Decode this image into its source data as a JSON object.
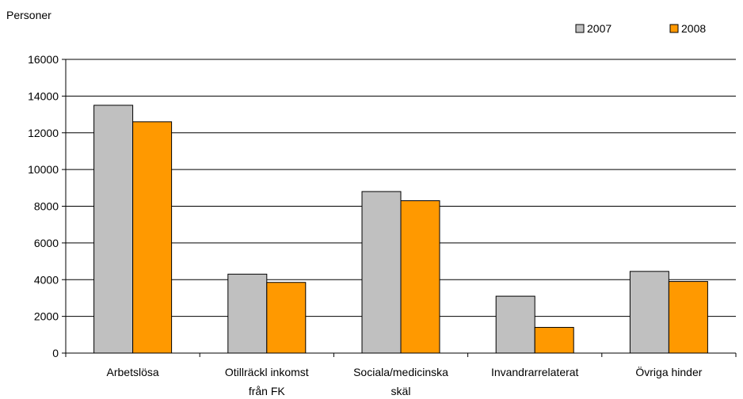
{
  "chart_data": {
    "type": "bar",
    "title": "",
    "ylabel": "Personer",
    "xlabel": "",
    "ylim": [
      0,
      16000
    ],
    "yticks": [
      "0",
      "2000",
      "4000",
      "6000",
      "8000",
      "10000",
      "12000",
      "14000",
      "16000"
    ],
    "categories": [
      [
        "Arbetslösa"
      ],
      [
        "Otillräckl inkomst",
        "från FK"
      ],
      [
        "Sociala/medicinska",
        "skäl"
      ],
      [
        "Invandrarrelaterat"
      ],
      [
        "Övriga hinder"
      ]
    ],
    "series": [
      {
        "name": "2007",
        "color": "#C0C0C0",
        "values": [
          13500,
          4300,
          8800,
          3100,
          4450
        ]
      },
      {
        "name": "2008",
        "color": "#FF9900",
        "values": [
          12600,
          3850,
          8300,
          1400,
          3900
        ]
      }
    ],
    "grid": true,
    "legend_position": "top-right"
  }
}
